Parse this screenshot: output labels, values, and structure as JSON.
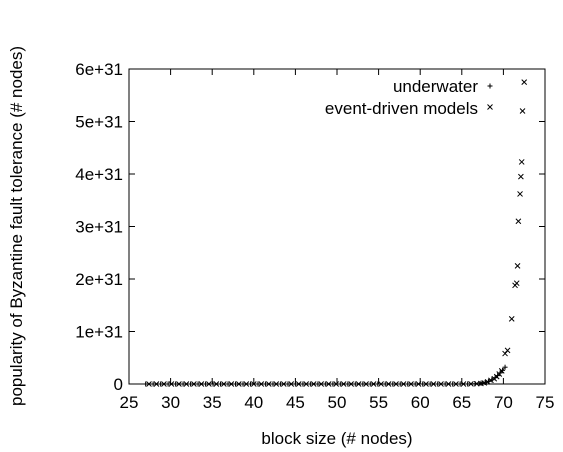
{
  "chart_data": {
    "type": "scatter",
    "xlabel": "block size (# nodes)",
    "ylabel": "popularity of Byzantine fault tolerance  (# nodes)",
    "xlim": [
      25,
      75
    ],
    "ylim": [
      0,
      6e+31
    ],
    "xticks": [
      25,
      30,
      35,
      40,
      45,
      50,
      55,
      60,
      65,
      70,
      75
    ],
    "yticks": [
      0,
      1e+31,
      2e+31,
      3e+31,
      4e+31,
      5e+31,
      6e+31
    ],
    "xtick_labels": [
      "25",
      "30",
      "35",
      "40",
      "45",
      "50",
      "55",
      "60",
      "65",
      "70",
      "75"
    ],
    "ytick_labels": [
      "0",
      "1e+31",
      "2e+31",
      "3e+31",
      "4e+31",
      "5e+31",
      "6e+31"
    ],
    "grid": false,
    "legend_position": "top-right",
    "series": [
      {
        "name": "underwater",
        "marker": "plus",
        "x": [
          27.0,
          27.9,
          28.8,
          29.7,
          30.6,
          31.5,
          32.4,
          33.3,
          34.2,
          35.1,
          36.0,
          36.9,
          37.8,
          38.7,
          39.6,
          40.5,
          41.4,
          42.3,
          43.2,
          44.1,
          45.0,
          45.9,
          46.8,
          47.7,
          48.6,
          49.5,
          50.4,
          51.3,
          52.2,
          53.1,
          54.0,
          54.9,
          55.8,
          56.7,
          57.6,
          58.5,
          59.4,
          60.3,
          61.2,
          62.1,
          63.0,
          63.9,
          64.8,
          65.7,
          66.6,
          67.3,
          67.8,
          68.2,
          68.6,
          69.0,
          69.3,
          69.6,
          69.9,
          70.2
        ],
        "y": [
          0,
          0,
          0,
          0,
          0,
          0,
          0,
          0,
          0,
          0,
          0,
          0,
          0,
          0,
          0,
          0,
          0,
          0,
          0,
          0,
          0,
          0,
          0,
          0,
          0,
          0,
          0,
          0,
          0,
          0,
          0,
          0,
          0,
          0,
          0,
          0,
          0,
          0,
          0,
          0,
          0,
          0,
          0,
          1e+28,
          5e+28,
          1.5e+29,
          3e+29,
          5e+29,
          8e+29,
          1.2e+30,
          1.6e+30,
          2.1e+30,
          2.6e+30,
          3.2e+30
        ]
      },
      {
        "name": "event-driven models",
        "marker": "cross",
        "x": [
          27.4,
          28.3,
          29.2,
          30.1,
          31.0,
          31.9,
          32.8,
          33.7,
          34.6,
          35.5,
          36.4,
          37.3,
          38.2,
          39.1,
          40.0,
          40.9,
          41.8,
          42.7,
          43.6,
          44.5,
          45.4,
          46.3,
          47.2,
          48.1,
          49.0,
          49.9,
          50.8,
          51.7,
          52.6,
          53.5,
          54.4,
          55.3,
          56.2,
          57.1,
          58.0,
          58.9,
          59.8,
          60.7,
          61.6,
          62.5,
          63.4,
          64.3,
          65.2,
          66.1,
          66.8,
          67.3,
          67.7,
          68.1,
          68.5,
          68.9,
          69.2,
          69.5,
          69.8,
          70.2,
          70.5,
          71.0,
          71.4,
          71.6,
          71.7,
          71.8,
          72.0,
          72.1,
          72.2,
          72.3,
          72.5
        ],
        "y": [
          0,
          0,
          0,
          0,
          0,
          0,
          0,
          0,
          0,
          0,
          0,
          0,
          0,
          0,
          0,
          0,
          0,
          0,
          0,
          0,
          0,
          0,
          0,
          0,
          0,
          0,
          0,
          0,
          0,
          0,
          0,
          0,
          0,
          0,
          0,
          0,
          0,
          0,
          0,
          0,
          0,
          0,
          0,
          2e+28,
          5e+28,
          1e+29,
          2e+29,
          4e+29,
          7e+29,
          1e+30,
          1.4e+30,
          1.9e+30,
          2.5e+30,
          5.8e+30,
          6.4e+30,
          1.24e+31,
          1.88e+31,
          1.92e+31,
          2.25e+31,
          3.1e+31,
          3.62e+31,
          3.95e+31,
          4.23e+31,
          5.2e+31,
          5.75e+31
        ]
      }
    ]
  }
}
